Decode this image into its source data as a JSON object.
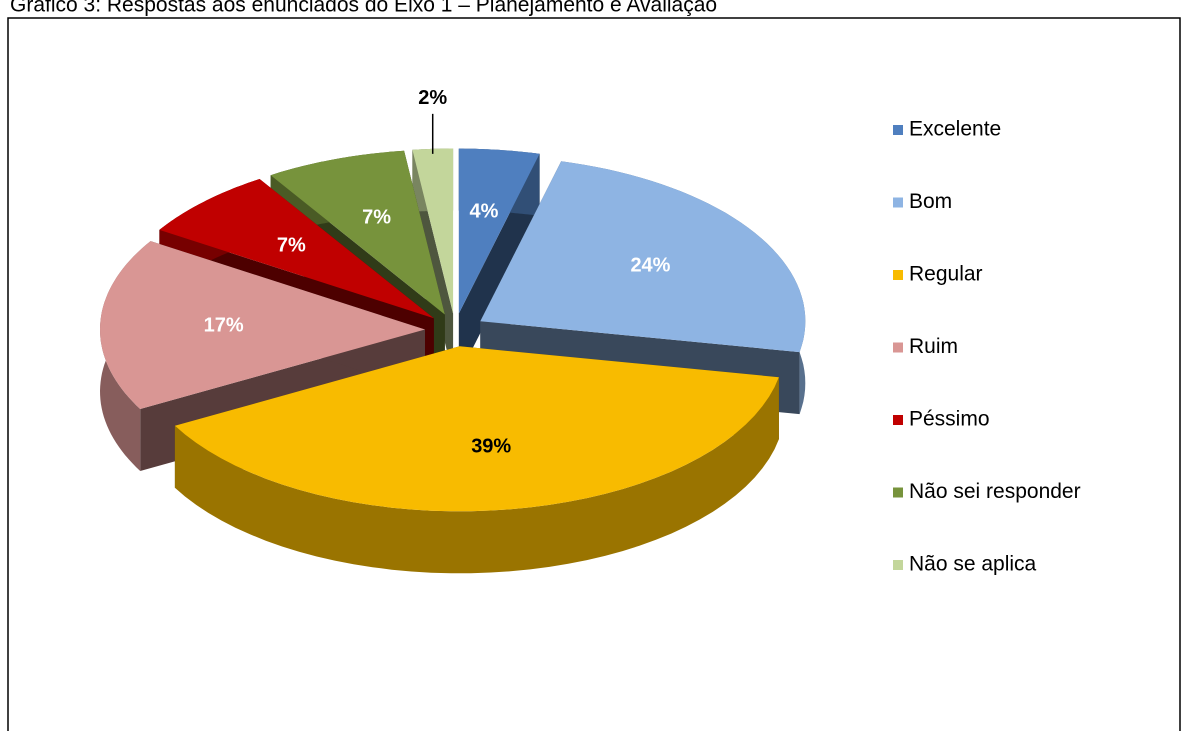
{
  "chart_data": {
    "type": "pie",
    "title": "Gráfico 3: Respostas aos enunciados do Eixo 1 – Planejamento e Avaliação",
    "categories": [
      "Excelente",
      "Bom",
      "Regular",
      "Ruim",
      "Péssimo",
      "Não sei responder",
      "Não se aplica"
    ],
    "values": [
      4,
      24,
      39,
      17,
      7,
      7,
      2
    ],
    "value_labels": [
      "4%",
      "24%",
      "39%",
      "17%",
      "7%",
      "7%",
      "2%"
    ],
    "colors": [
      "#4f7fbf",
      "#8eb4e3",
      "#f8bb00",
      "#d99694",
      "#c00000",
      "#77933c",
      "#c3d69b"
    ],
    "legend": "right"
  }
}
